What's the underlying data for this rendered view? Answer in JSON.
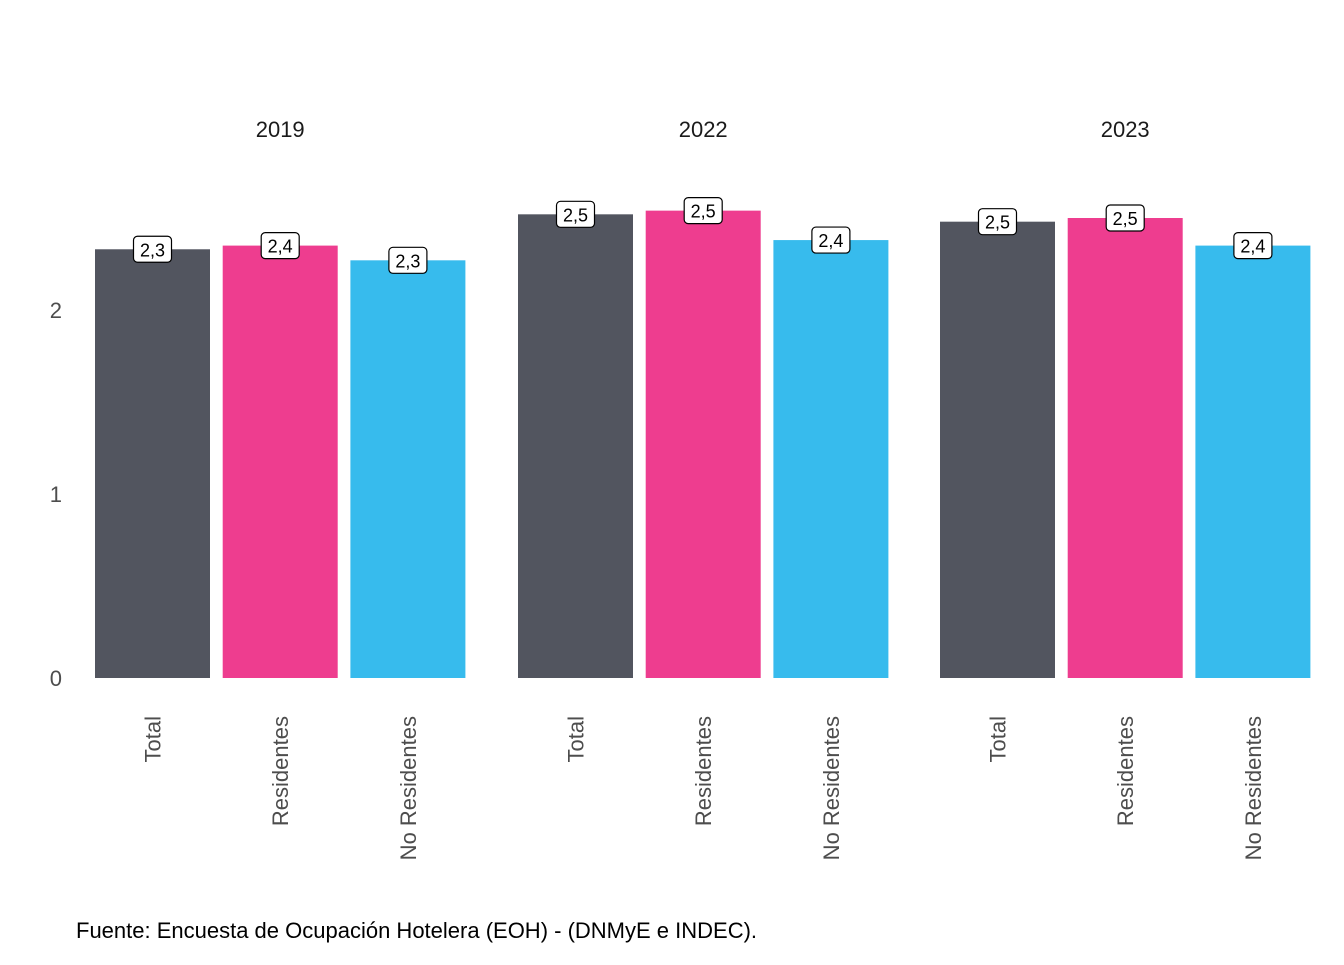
{
  "chart_data": {
    "type": "bar",
    "title": "",
    "xlabel": "",
    "ylabel": "",
    "ylim": [
      0,
      2.75
    ],
    "y_ticks": [
      "0",
      "1",
      "2"
    ],
    "grid": false,
    "legend": "none",
    "facet_by": "year",
    "panels": [
      {
        "label": "2019",
        "categories": [
          "Total",
          "Residentes",
          "No Residentes"
        ],
        "values": [
          2.33,
          2.35,
          2.27
        ],
        "data_labels": [
          "2,3",
          "2,4",
          "2,3"
        ]
      },
      {
        "label": "2022",
        "categories": [
          "Total",
          "Residentes",
          "No Residentes"
        ],
        "values": [
          2.52,
          2.54,
          2.38
        ],
        "data_labels": [
          "2,5",
          "2,5",
          "2,4"
        ]
      },
      {
        "label": "2023",
        "categories": [
          "Total",
          "Residentes",
          "No Residentes"
        ],
        "values": [
          2.48,
          2.5,
          2.35
        ],
        "data_labels": [
          "2,5",
          "2,5",
          "2,4"
        ]
      }
    ],
    "colors": {
      "Total": "#52555f",
      "Residentes": "#ee3d8f",
      "No Residentes": "#37bbed"
    },
    "source": "Fuente: Encuesta de Ocupación Hotelera (EOH) - (DNMyE e INDEC)."
  }
}
